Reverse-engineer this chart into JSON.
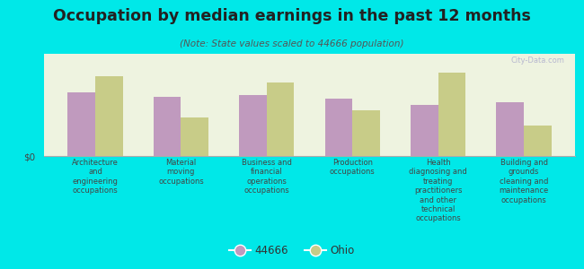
{
  "title": "Occupation by median earnings in the past 12 months",
  "subtitle": "(Note: State values scaled to 44666 population)",
  "background_color": "#00e8e8",
  "bar_color_44666": "#c09abe",
  "bar_color_ohio": "#c8cc88",
  "categories": [
    "Architecture\nand\nengineering\noccupations",
    "Material\nmoving\noccupations",
    "Business and\nfinancial\noperations\noccupations",
    "Production\noccupations",
    "Health\ndiagnosing and\ntreating\npractitioners\nand other\ntechnical\noccupations",
    "Building and\ngrounds\ncleaning and\nmaintenance\noccupations"
  ],
  "values_44666": [
    0.62,
    0.58,
    0.6,
    0.56,
    0.5,
    0.53
  ],
  "values_ohio": [
    0.78,
    0.38,
    0.72,
    0.45,
    0.82,
    0.3
  ],
  "ylabel": "$0",
  "legend_44666": "44666",
  "legend_ohio": "Ohio",
  "watermark": "City-Data.com",
  "plot_bg_color": "#eef3e0",
  "bar_width": 0.32,
  "ylim": [
    0,
    1.0
  ],
  "title_fontsize": 12.5,
  "subtitle_fontsize": 7.5,
  "tick_fontsize": 6.0,
  "legend_fontsize": 8.5
}
